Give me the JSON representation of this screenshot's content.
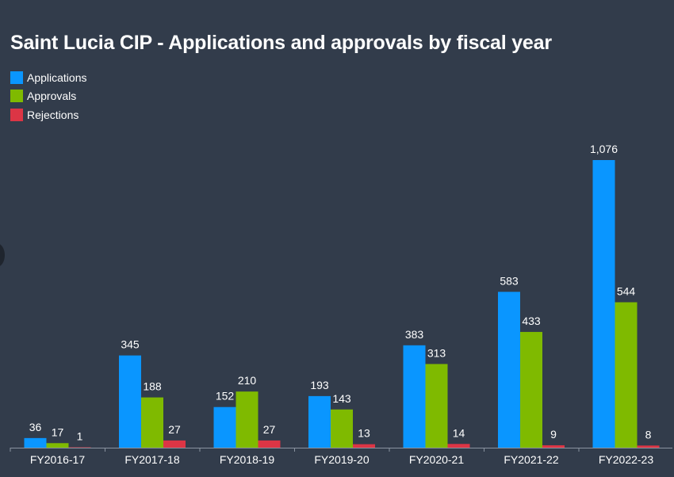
{
  "chart_data": {
    "type": "bar",
    "title": "Saint Lucia CIP - Applications and approvals by fiscal year",
    "categories": [
      "FY2016-17",
      "FY2017-18",
      "FY2018-19",
      "FY2019-20",
      "FY2020-21",
      "FY2021-22",
      "FY2022-23"
    ],
    "series": [
      {
        "name": "Applications",
        "color": "#0a96ff",
        "values": [
          36,
          345,
          152,
          193,
          383,
          583,
          1076
        ],
        "labels": [
          "36",
          "345",
          "152",
          "193",
          "383",
          "583",
          "1,076"
        ]
      },
      {
        "name": "Approvals",
        "color": "#7fba00",
        "values": [
          17,
          188,
          210,
          143,
          313,
          433,
          544
        ],
        "labels": [
          "17",
          "188",
          "210",
          "143",
          "313",
          "433",
          "544"
        ]
      },
      {
        "name": "Rejections",
        "color": "#dc3545",
        "values": [
          1,
          27,
          27,
          13,
          14,
          9,
          8
        ],
        "labels": [
          "1",
          "27",
          "27",
          "13",
          "14",
          "9",
          "8"
        ]
      }
    ],
    "xlabel": "",
    "ylabel": "",
    "grid": false,
    "legend_position": "top-left"
  },
  "colors": {
    "background": "#323c4b",
    "text": "#ffffff",
    "axis": "#8a93a0"
  }
}
